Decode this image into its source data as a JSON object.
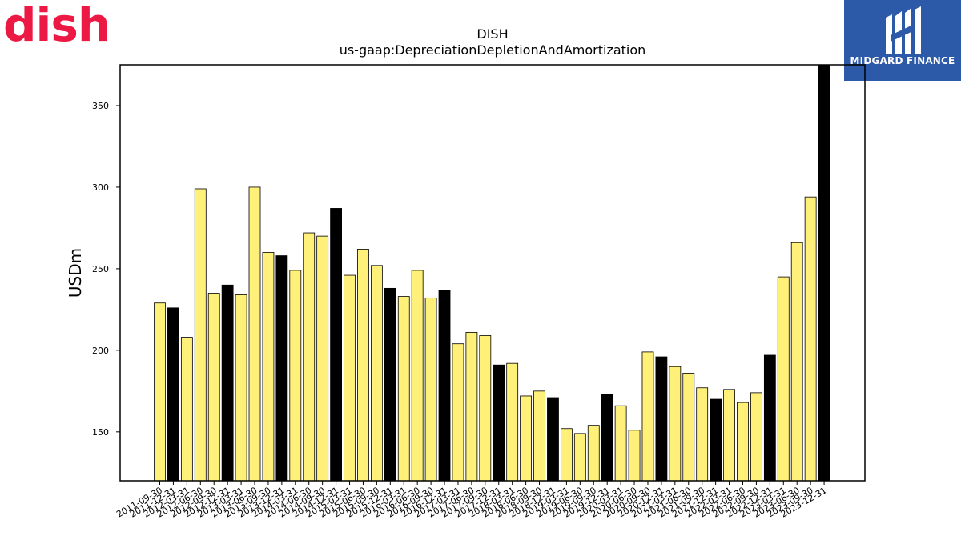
{
  "brand_left": {
    "wordmark": "dish",
    "color": "#ec1944"
  },
  "brand_right": {
    "label": "MIDGARD FINANCE",
    "background": "#2c59a8",
    "icon": "midgard-finance-logo-icon"
  },
  "chart_data": {
    "type": "bar",
    "title": "DISH",
    "subtitle": "us-gaap:DepreciationDepletionAndAmortization",
    "xlabel": "",
    "ylabel": "USDm",
    "ylim": [
      120,
      375
    ],
    "yticks": [
      150,
      200,
      250,
      300,
      350
    ],
    "grid": false,
    "colors": {
      "regular": "#fff07a",
      "highlight": "#000000",
      "edge": "#000000"
    },
    "categories": [
      "2011-09-30",
      "2011-12-31",
      "2012-03-31",
      "2012-06-30",
      "2012-09-30",
      "2012-12-31",
      "2013-03-31",
      "2013-06-30",
      "2013-09-30",
      "2013-12-31",
      "2014-03-31",
      "2014-06-30",
      "2014-09-30",
      "2014-12-31",
      "2015-03-31",
      "2015-06-30",
      "2015-09-30",
      "2015-12-31",
      "2016-03-31",
      "2016-06-30",
      "2016-09-30",
      "2016-12-31",
      "2017-03-31",
      "2017-06-30",
      "2017-09-30",
      "2017-12-31",
      "2018-03-31",
      "2018-06-30",
      "2018-09-30",
      "2018-12-31",
      "2019-03-31",
      "2019-06-30",
      "2019-09-30",
      "2019-12-31",
      "2020-03-31",
      "2020-06-30",
      "2020-09-30",
      "2020-12-31",
      "2021-03-31",
      "2021-06-30",
      "2021-09-30",
      "2021-12-31",
      "2022-03-31",
      "2022-06-30",
      "2022-09-30",
      "2022-12-31",
      "2023-03-31",
      "2023-06-30",
      "2023-09-30",
      "2023-12-31"
    ],
    "values": [
      229,
      226,
      208,
      299,
      235,
      240,
      234,
      300,
      260,
      258,
      249,
      272,
      270,
      287,
      246,
      262,
      252,
      238,
      233,
      249,
      232,
      237,
      204,
      211,
      209,
      191,
      192,
      172,
      175,
      171,
      152,
      149,
      154,
      173,
      166,
      151,
      199,
      196,
      190,
      186,
      177,
      170,
      176,
      168,
      174,
      197,
      245,
      266,
      294,
      375
    ],
    "highlight": [
      false,
      true,
      false,
      false,
      false,
      true,
      false,
      false,
      false,
      true,
      false,
      false,
      false,
      true,
      false,
      false,
      false,
      true,
      false,
      false,
      false,
      true,
      false,
      false,
      false,
      true,
      false,
      false,
      false,
      true,
      false,
      false,
      false,
      true,
      false,
      false,
      false,
      true,
      false,
      false,
      false,
      true,
      false,
      false,
      false,
      true,
      false,
      false,
      false,
      true
    ]
  }
}
